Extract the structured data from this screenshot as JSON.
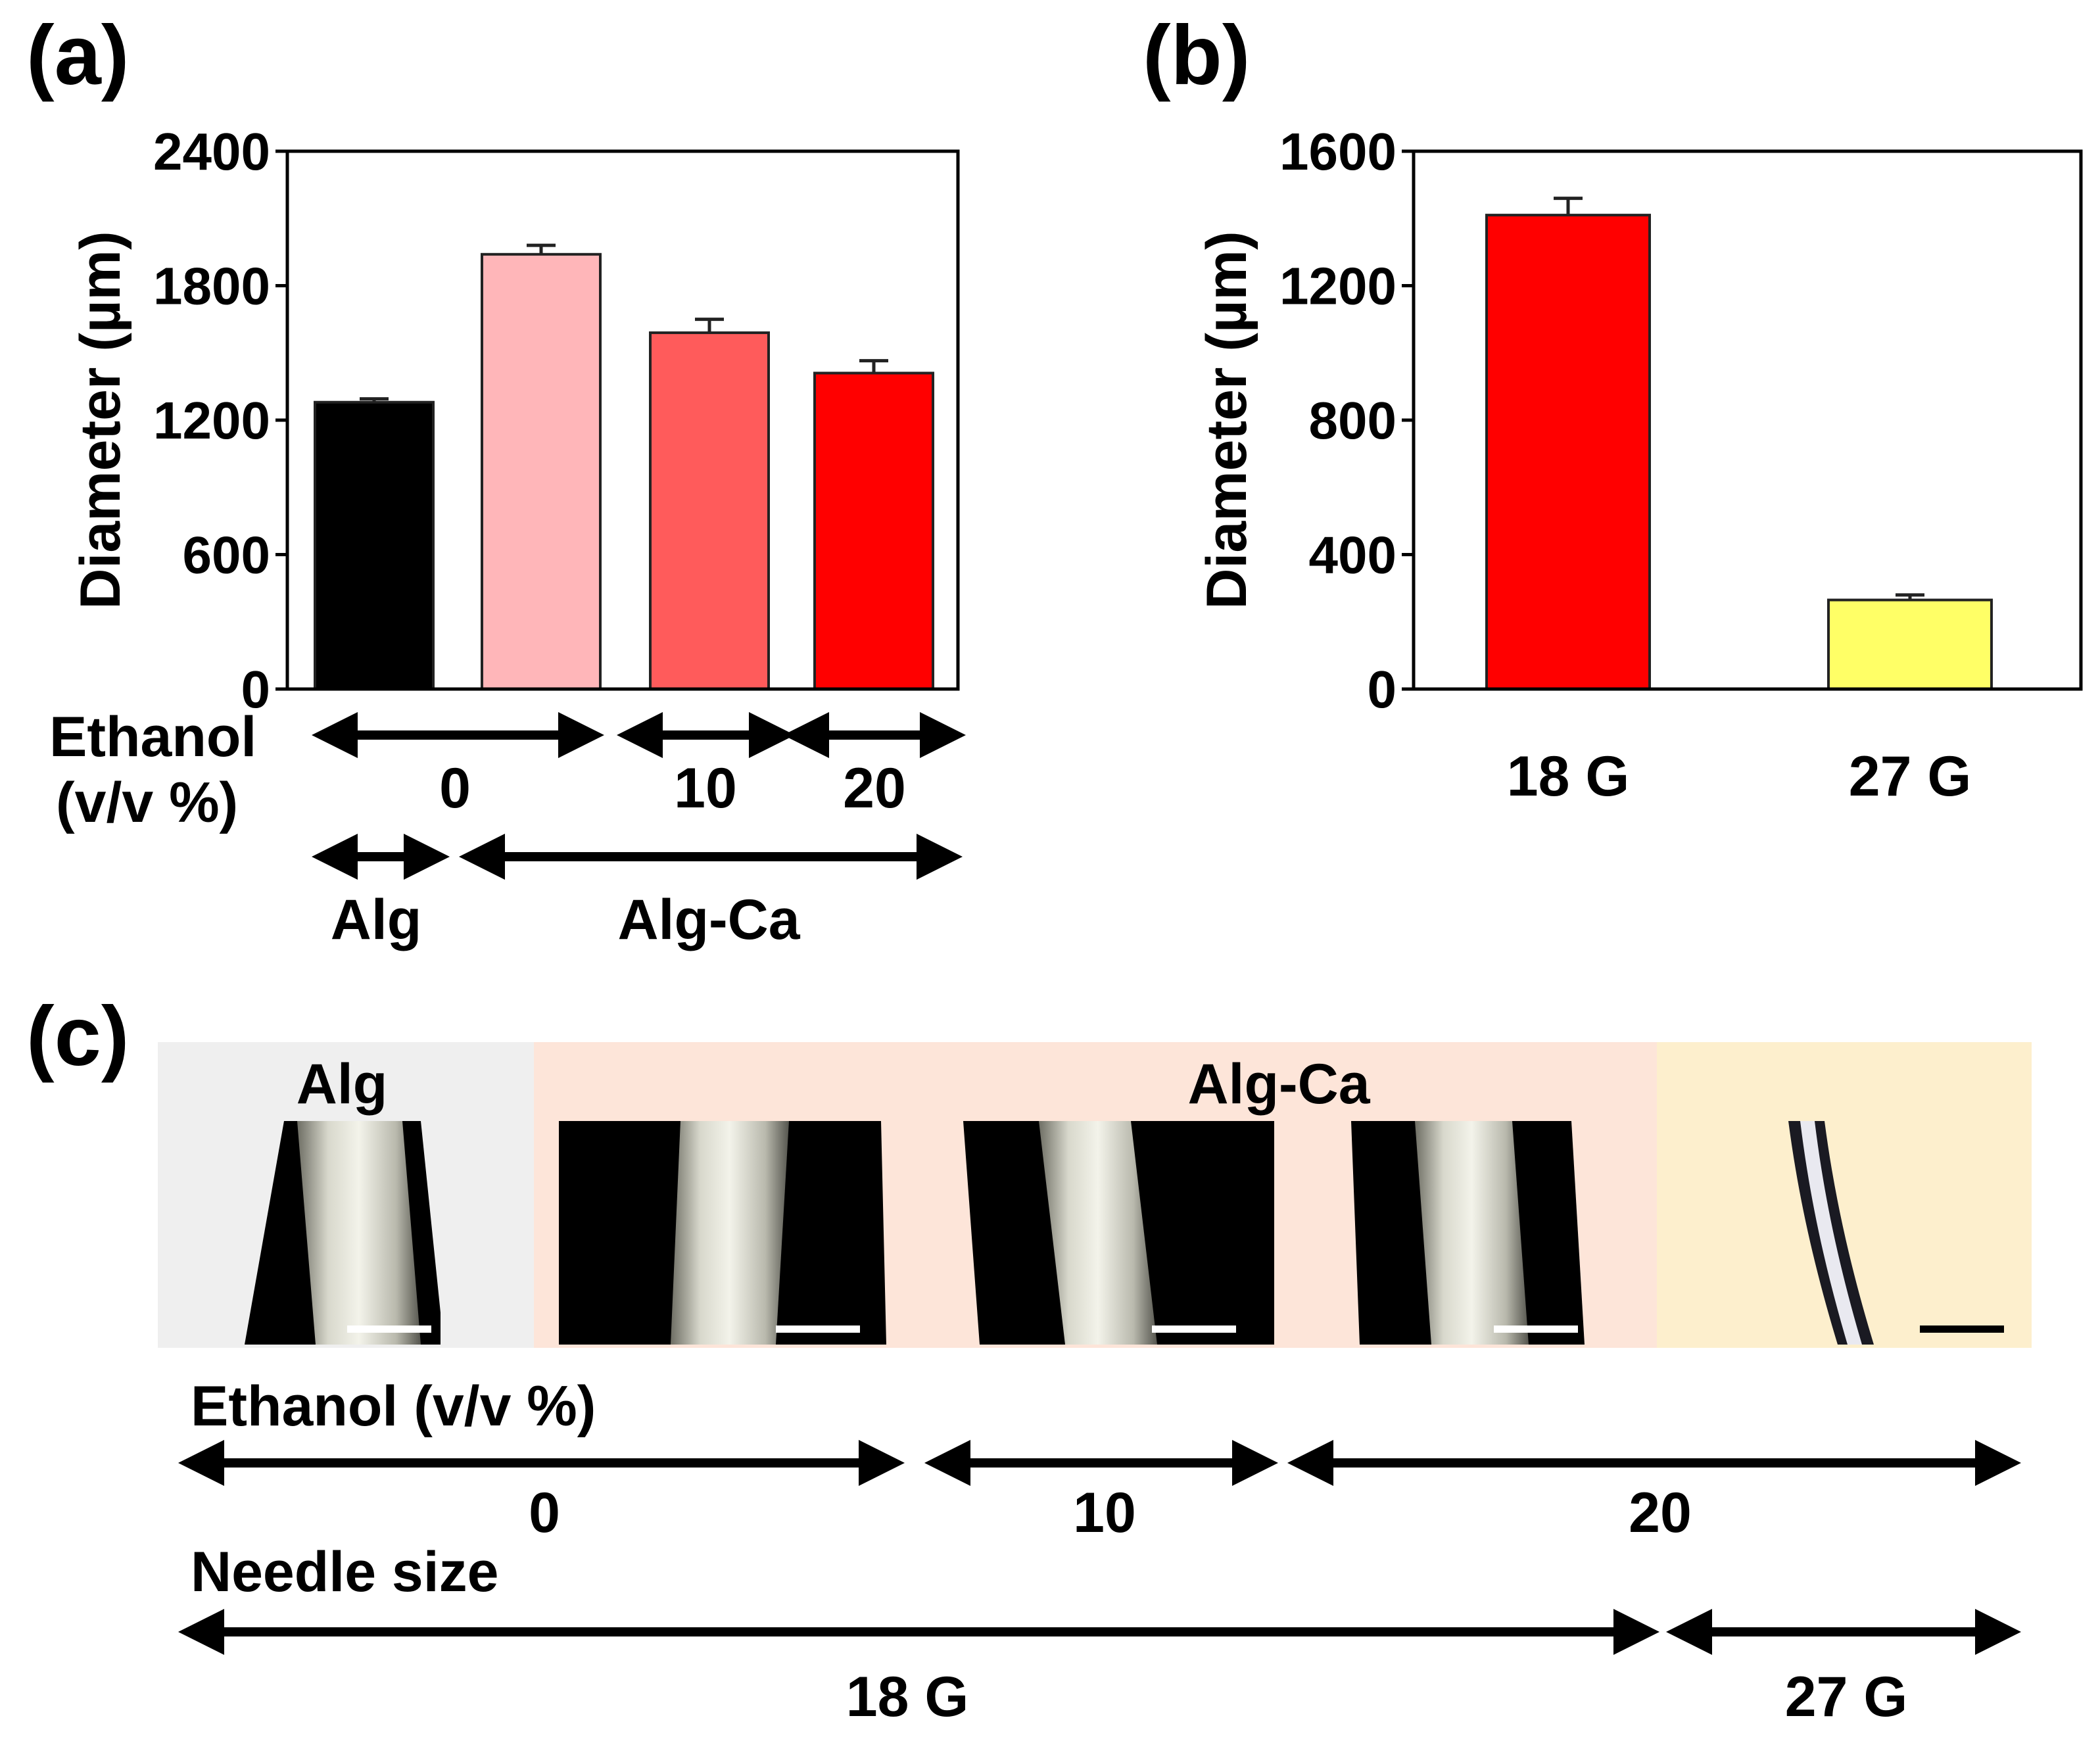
{
  "panels": {
    "a": {
      "label": "(a)"
    },
    "b": {
      "label": "(b)"
    },
    "c": {
      "label": "(c)"
    }
  },
  "chart_data": [
    {
      "type": "bar",
      "panel": "(a)",
      "ylabel": "Diameter (µm)",
      "ylim": [
        0,
        2400
      ],
      "yticks": [
        "0",
        "600",
        "1200",
        "1800",
        "2400"
      ],
      "bars": [
        {
          "value": 1280,
          "error": 15,
          "color": "#000000"
        },
        {
          "value": 1940,
          "error": 40,
          "color": "#ffb6b9"
        },
        {
          "value": 1590,
          "error": 60,
          "color": "#ff5b5b"
        },
        {
          "value": 1410,
          "error": 55,
          "color": "#ff0000"
        }
      ],
      "annotations": {
        "ethanol_label": [
          "Ethanol",
          "(v/v %)"
        ],
        "ethanol_groups": [
          "0",
          "10",
          "20"
        ],
        "material_groups": [
          "Alg",
          "Alg-Ca"
        ]
      }
    },
    {
      "type": "bar",
      "panel": "(b)",
      "ylabel": "Diameter (µm)",
      "ylim": [
        0,
        1600
      ],
      "yticks": [
        "0",
        "400",
        "800",
        "1200",
        "1600"
      ],
      "categories": [
        "18 G",
        "27 G"
      ],
      "bars": [
        {
          "value": 1410,
          "error": 50,
          "color": "#ff0000"
        },
        {
          "value": 265,
          "error": 15,
          "color": "#ffff66"
        }
      ]
    }
  ],
  "panel_c": {
    "group_labels": [
      "Alg",
      "Alg-Ca"
    ],
    "ethanol_label": "Ethanol (v/v %)",
    "ethanol_groups": [
      "0",
      "10",
      "20"
    ],
    "needle_label": "Needle size",
    "needle_groups": [
      "18 G",
      "27 G"
    ],
    "background_colors": {
      "alg": "#efefef",
      "alg_ca": "#fde5d9",
      "g27": "#fdefcd"
    },
    "micrograph_count": 5
  }
}
